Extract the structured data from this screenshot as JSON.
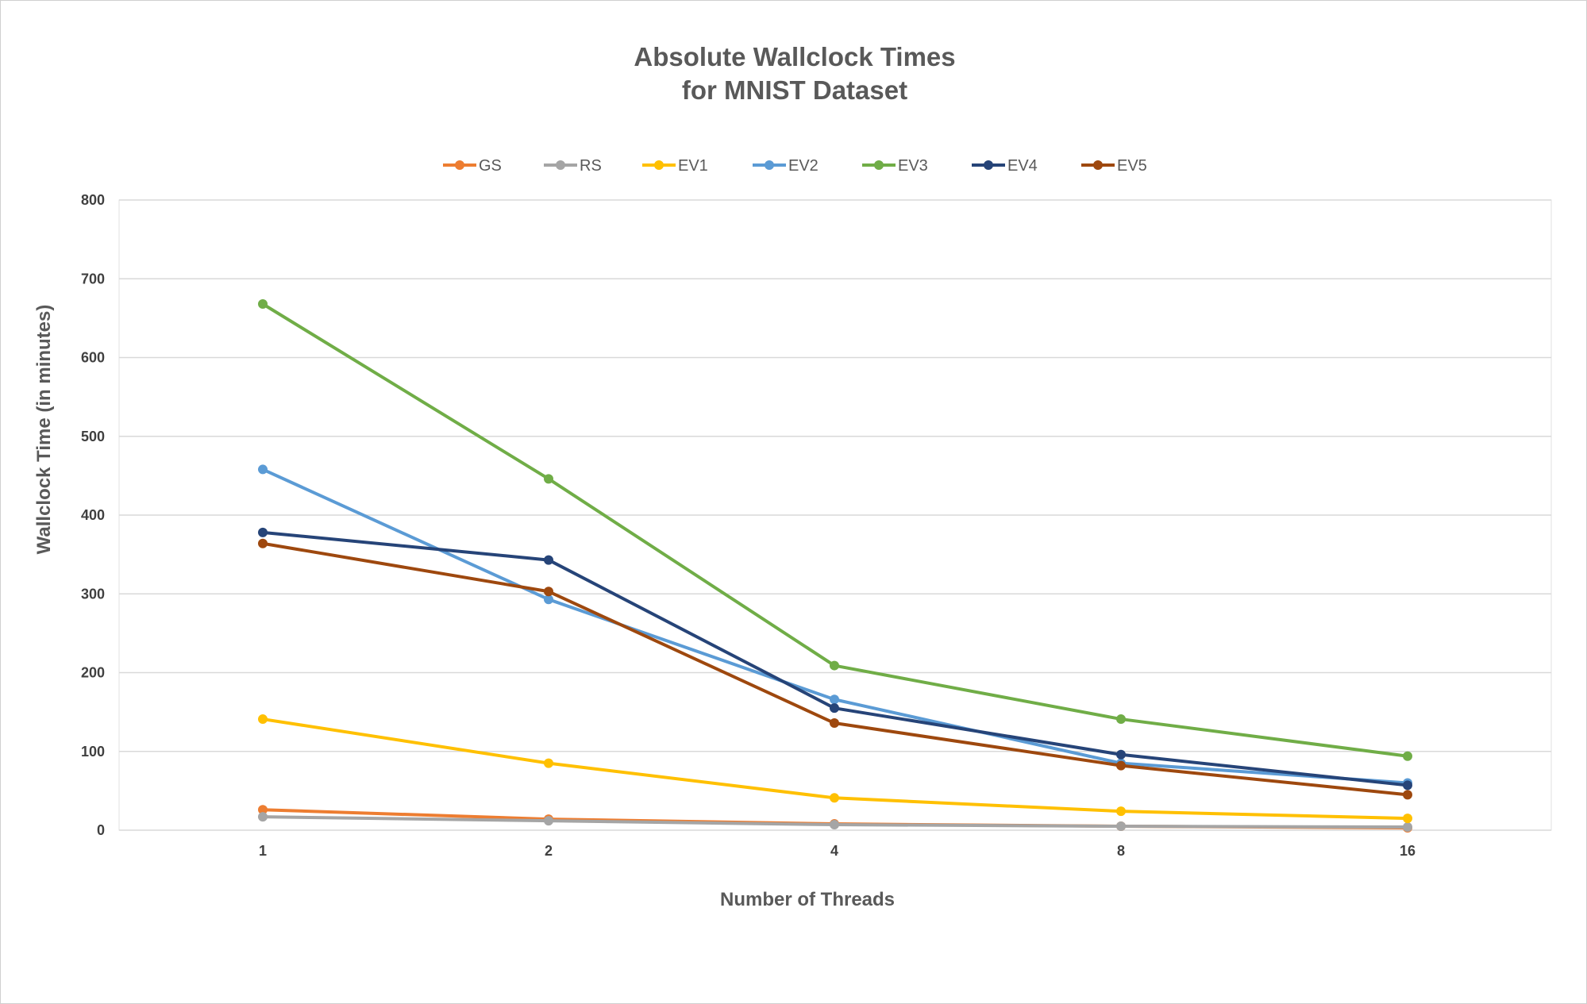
{
  "chart_data": {
    "type": "line",
    "title": [
      "Absolute Wallclock Times",
      "for MNIST Dataset"
    ],
    "xlabel": "Number of Threads",
    "ylabel": "Wallclock Time (in minutes)",
    "categories": [
      "1",
      "2",
      "4",
      "8",
      "16"
    ],
    "ylim": [
      0,
      800
    ],
    "yticks": [
      0,
      100,
      200,
      300,
      400,
      500,
      600,
      700,
      800
    ],
    "grid": true,
    "legend_position": "top",
    "series": [
      {
        "name": "GS",
        "color": "#ED7D31",
        "values": [
          26,
          14,
          8,
          5,
          3
        ]
      },
      {
        "name": "RS",
        "color": "#A5A5A5",
        "values": [
          17,
          12,
          7,
          5,
          4
        ]
      },
      {
        "name": "EV1",
        "color": "#FFC000",
        "values": [
          141,
          85,
          41,
          24,
          15
        ]
      },
      {
        "name": "EV2",
        "color": "#5B9BD5",
        "values": [
          458,
          293,
          166,
          85,
          60
        ]
      },
      {
        "name": "EV3",
        "color": "#70AD47",
        "values": [
          668,
          446,
          209,
          141,
          94
        ]
      },
      {
        "name": "EV4",
        "color": "#264478",
        "values": [
          378,
          343,
          155,
          96,
          57
        ]
      },
      {
        "name": "EV5",
        "color": "#9E480E",
        "values": [
          364,
          303,
          136,
          82,
          45
        ]
      }
    ]
  }
}
